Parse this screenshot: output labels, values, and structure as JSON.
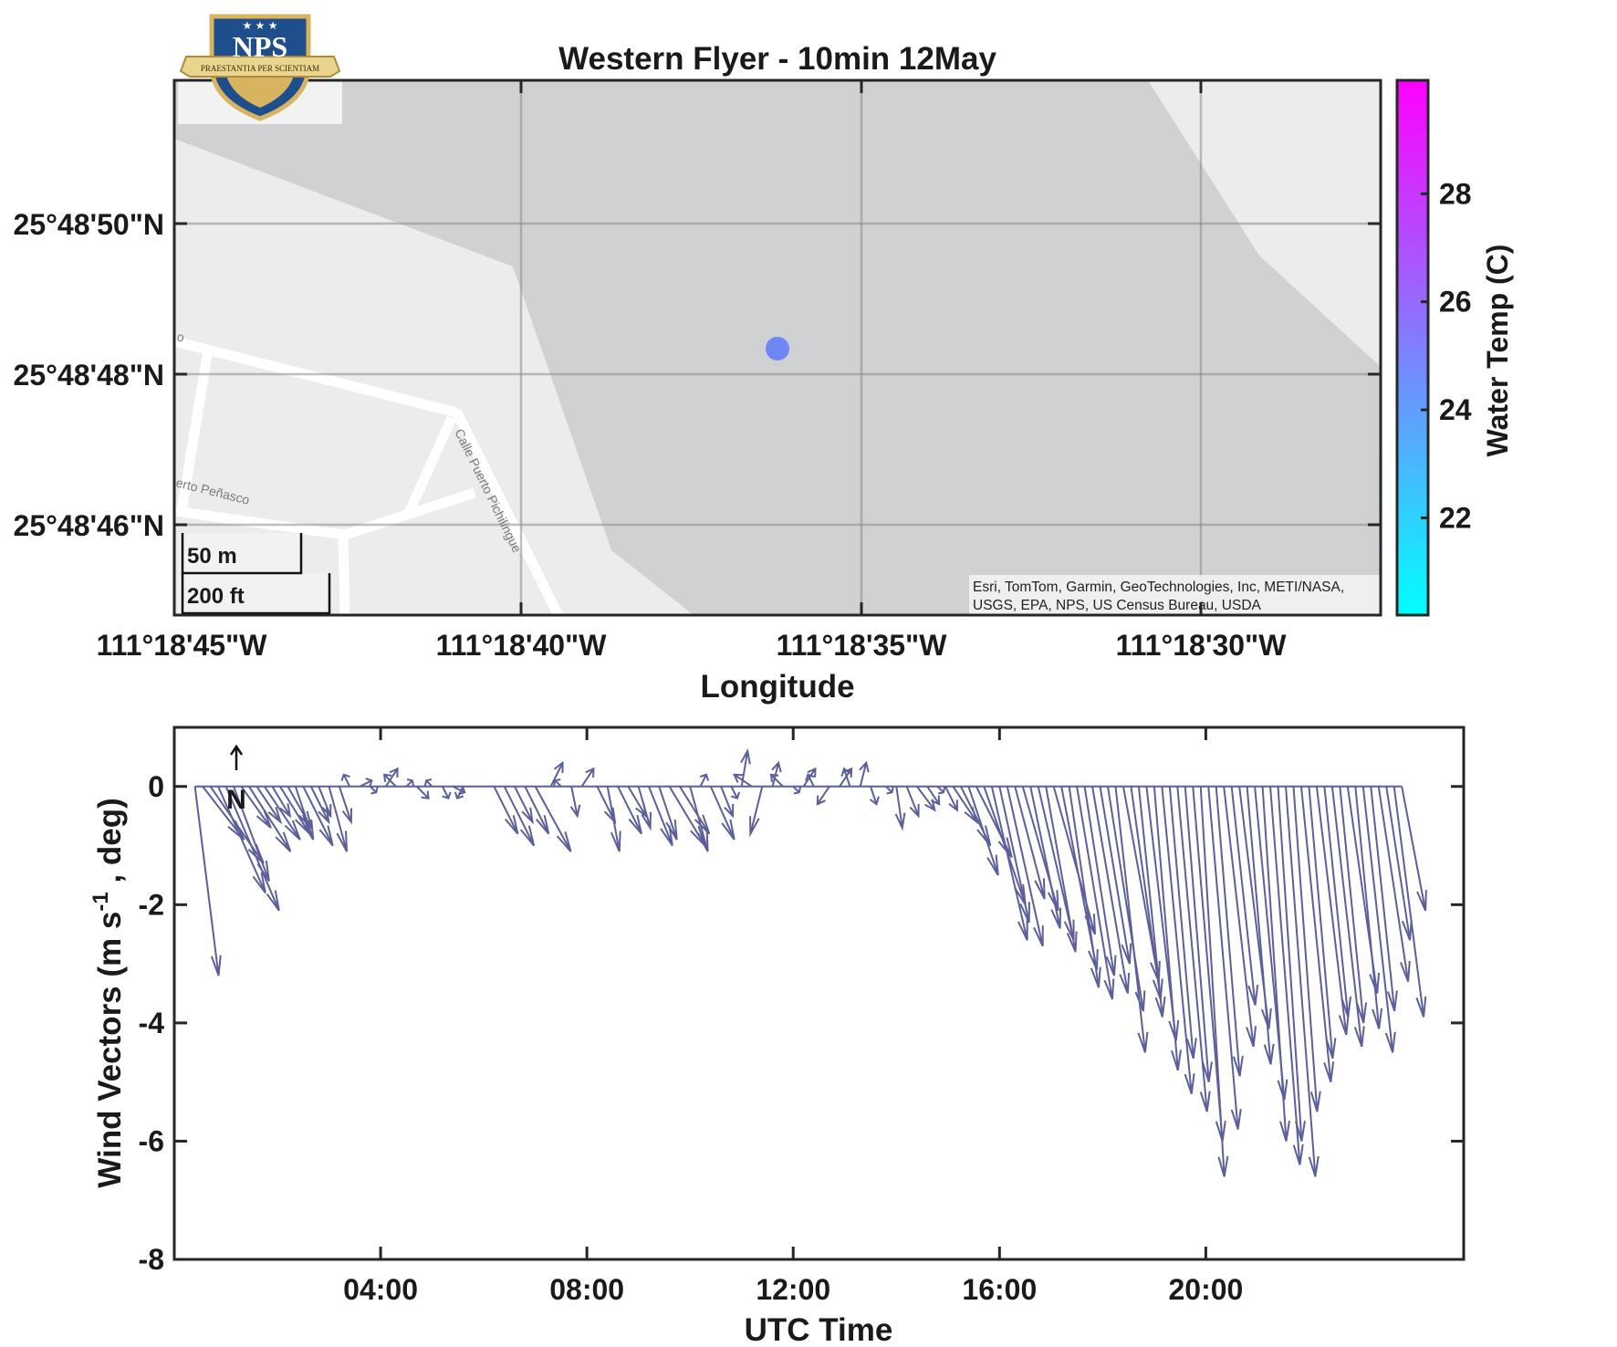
{
  "logo": {
    "text": "NPS",
    "motto": "PRAESTANTIA PER SCIENTIAM",
    "colors": {
      "shield": "#1f4e8c",
      "gold": "#d7b460"
    }
  },
  "map": {
    "title": "Western Flyer - 10min 12May",
    "xlabel": "Longitude",
    "x_ticks": [
      "111°18'45\"W",
      "111°18'40\"W",
      "111°18'35\"W",
      "111°18'30\"W"
    ],
    "y_ticks": [
      "25°48'50\"N",
      "25°48'48\"N",
      "25°48'46\"N"
    ],
    "scale_bar": {
      "metric": "50 m",
      "imperial": "200 ft"
    },
    "street_labels": [
      "Calle Puerto Pichilingue",
      "erto Peñasco",
      "o"
    ],
    "attribution_line1": "Esri, TomTom, Garmin, GeoTechnologies, Inc, METI/NASA,",
    "attribution_line2": "USGS, EPA, NPS, US Census Bureau, USDA",
    "colorbar": {
      "label": "Water Temp (C)",
      "ticks": [
        "22",
        "24",
        "26",
        "28"
      ],
      "min": 20.2,
      "max": 30.1,
      "colors": [
        "#00ffff",
        "#ff00ff"
      ]
    },
    "colors": {
      "water": "#cfd1d2",
      "land": "#ececec",
      "road": "#ffffff",
      "marker": "#6f86f7"
    }
  },
  "chart_data": [
    {
      "type": "scatter",
      "title": "Western Flyer - 10min 12May",
      "xlabel": "Longitude",
      "ylabel": "",
      "x_ticks": [
        "111°18'45\"W",
        "111°18'40\"W",
        "111°18'35\"W",
        "111°18'30\"W"
      ],
      "y_ticks": [
        "25°48'50\"N",
        "25°48'48\"N",
        "25°48'46\"N"
      ],
      "points": [
        {
          "lon": -111.30982,
          "lat": 25.81338,
          "water_temp_c": 25.3
        }
      ],
      "grid": true
    },
    {
      "type": "line",
      "subtype": "wind vector stick plot",
      "xlabel": "UTC Time",
      "ylabel": "Wind Vectors (m s^-1 , deg)",
      "x_ticks": [
        "04:00",
        "08:00",
        "12:00",
        "16:00",
        "20:00"
      ],
      "y_ticks": [
        "0",
        "-2",
        "-4",
        "-6",
        "-8"
      ],
      "xlim_hours": [
        0,
        25
      ],
      "ylim": [
        -8,
        1
      ],
      "north_label": "N",
      "color": "#5d5f9a",
      "grid": false,
      "vectors": [
        {
          "t": 0.4,
          "u": 0.4,
          "v": -3.2
        },
        {
          "t": 0.55,
          "u": 0.7,
          "v": -0.9
        },
        {
          "t": 0.7,
          "u": 0.9,
          "v": -1.3
        },
        {
          "t": 0.85,
          "u": 0.8,
          "v": -1.8
        },
        {
          "t": 1.0,
          "u": 0.9,
          "v": -2.1
        },
        {
          "t": 1.15,
          "u": 0.6,
          "v": -1.6
        },
        {
          "t": 1.3,
          "u": 0.5,
          "v": -0.7
        },
        {
          "t": 1.45,
          "u": 0.7,
          "v": -1.1
        },
        {
          "t": 1.6,
          "u": 0.4,
          "v": -0.6
        },
        {
          "t": 1.75,
          "u": 0.6,
          "v": -0.9
        },
        {
          "t": 1.9,
          "u": 0.3,
          "v": -0.5
        },
        {
          "t": 2.05,
          "u": 0.5,
          "v": -0.8
        },
        {
          "t": 2.2,
          "u": 0.4,
          "v": -0.7
        },
        {
          "t": 2.35,
          "u": 0.3,
          "v": -0.9
        },
        {
          "t": 2.5,
          "u": 0.5,
          "v": -1.0
        },
        {
          "t": 2.65,
          "u": 0.3,
          "v": -0.6
        },
        {
          "t": 2.8,
          "u": 0.2,
          "v": -0.5
        },
        {
          "t": 3.0,
          "u": 0.3,
          "v": -1.1
        },
        {
          "t": 3.2,
          "u": 0.2,
          "v": -0.6
        },
        {
          "t": 3.4,
          "u": -0.1,
          "v": 0.2
        },
        {
          "t": 3.6,
          "u": 0.2,
          "v": 0.1
        },
        {
          "t": 3.8,
          "u": 0.1,
          "v": -0.1
        },
        {
          "t": 4.1,
          "u": 0.2,
          "v": 0.3
        },
        {
          "t": 4.3,
          "u": -0.2,
          "v": 0.2
        },
        {
          "t": 4.5,
          "u": 0.1,
          "v": 0.1
        },
        {
          "t": 4.7,
          "u": 0.2,
          "v": -0.2
        },
        {
          "t": 5.0,
          "u": -0.1,
          "v": 0.1
        },
        {
          "t": 5.2,
          "u": 0.1,
          "v": -0.2
        },
        {
          "t": 5.4,
          "u": 0.2,
          "v": -0.1
        },
        {
          "t": 5.6,
          "u": -0.1,
          "v": -0.2
        },
        {
          "t": 6.2,
          "u": 0.4,
          "v": -0.8
        },
        {
          "t": 6.4,
          "u": 0.5,
          "v": -1.0
        },
        {
          "t": 6.6,
          "u": 0.3,
          "v": -0.6
        },
        {
          "t": 6.8,
          "u": 0.4,
          "v": -0.8
        },
        {
          "t": 7.0,
          "u": 0.6,
          "v": -1.1
        },
        {
          "t": 7.3,
          "u": 0.2,
          "v": 0.4
        },
        {
          "t": 7.5,
          "u": -0.1,
          "v": 0.1
        },
        {
          "t": 7.7,
          "u": 0.1,
          "v": -0.5
        },
        {
          "t": 7.9,
          "u": 0.2,
          "v": 0.3
        },
        {
          "t": 8.2,
          "u": 0.3,
          "v": -0.6
        },
        {
          "t": 8.4,
          "u": 0.2,
          "v": -1.1
        },
        {
          "t": 8.6,
          "u": 0.4,
          "v": -0.8
        },
        {
          "t": 8.8,
          "u": 0.3,
          "v": -0.5
        },
        {
          "t": 9.0,
          "u": 0.2,
          "v": -0.7
        },
        {
          "t": 9.2,
          "u": 0.4,
          "v": -1.0
        },
        {
          "t": 9.4,
          "u": 0.3,
          "v": -0.9
        },
        {
          "t": 9.6,
          "u": 0.6,
          "v": -1.0
        },
        {
          "t": 9.8,
          "u": 0.5,
          "v": -0.8
        },
        {
          "t": 10.0,
          "u": 0.3,
          "v": -1.1
        },
        {
          "t": 10.2,
          "u": 0.1,
          "v": 0.2
        },
        {
          "t": 10.4,
          "u": 0.4,
          "v": -0.9
        },
        {
          "t": 10.6,
          "u": 0.2,
          "v": -0.5
        },
        {
          "t": 10.8,
          "u": 0.1,
          "v": -0.2
        },
        {
          "t": 11.0,
          "u": 0.1,
          "v": 0.6
        },
        {
          "t": 11.2,
          "u": -0.3,
          "v": 0.2
        },
        {
          "t": 11.4,
          "u": -0.2,
          "v": -0.8
        },
        {
          "t": 11.6,
          "u": 0.1,
          "v": 0.4
        },
        {
          "t": 11.8,
          "u": -0.2,
          "v": 0.2
        },
        {
          "t": 12.0,
          "u": 0.1,
          "v": -0.1
        },
        {
          "t": 12.2,
          "u": 0.2,
          "v": 0.3
        },
        {
          "t": 12.4,
          "u": -0.1,
          "v": 0.2
        },
        {
          "t": 12.7,
          "u": -0.2,
          "v": -0.3
        },
        {
          "t": 12.9,
          "u": 0.2,
          "v": 0.3
        },
        {
          "t": 13.1,
          "u": -0.1,
          "v": 0.3
        },
        {
          "t": 13.3,
          "u": 0.1,
          "v": 0.4
        },
        {
          "t": 13.5,
          "u": 0.1,
          "v": -0.3
        },
        {
          "t": 13.8,
          "u": 0.1,
          "v": -0.1
        },
        {
          "t": 14.0,
          "u": 0.1,
          "v": -0.7
        },
        {
          "t": 14.2,
          "u": 0.2,
          "v": -0.5
        },
        {
          "t": 14.4,
          "u": 0.3,
          "v": -0.4
        },
        {
          "t": 14.6,
          "u": 0.2,
          "v": -0.3
        },
        {
          "t": 14.8,
          "u": 0.1,
          "v": -0.1
        },
        {
          "t": 14.95,
          "u": 0.2,
          "v": -0.4
        },
        {
          "t": 15.1,
          "u": 0.4,
          "v": -0.6
        },
        {
          "t": 15.25,
          "u": 0.5,
          "v": -1.0
        },
        {
          "t": 15.4,
          "u": 0.5,
          "v": -1.5
        },
        {
          "t": 15.55,
          "u": 0.6,
          "v": -1.2
        },
        {
          "t": 15.7,
          "u": 0.7,
          "v": -2.0
        },
        {
          "t": 15.85,
          "u": 0.6,
          "v": -2.6
        },
        {
          "t": 16.0,
          "u": 0.5,
          "v": -2.3
        },
        {
          "t": 16.15,
          "u": 0.6,
          "v": -2.7
        },
        {
          "t": 16.3,
          "u": 0.5,
          "v": -1.9
        },
        {
          "t": 16.45,
          "u": 0.6,
          "v": -2.1
        },
        {
          "t": 16.6,
          "u": 0.5,
          "v": -2.4
        },
        {
          "t": 16.75,
          "u": 0.6,
          "v": -2.6
        },
        {
          "t": 16.9,
          "u": 0.5,
          "v": -2.8
        },
        {
          "t": 17.05,
          "u": 0.7,
          "v": -2.5
        },
        {
          "t": 17.2,
          "u": 0.6,
          "v": -3.1
        },
        {
          "t": 17.35,
          "u": 0.5,
          "v": -3.4
        },
        {
          "t": 17.5,
          "u": 0.6,
          "v": -3.6
        },
        {
          "t": 17.65,
          "u": 0.5,
          "v": -3.2
        },
        {
          "t": 17.8,
          "u": 0.6,
          "v": -3.5
        },
        {
          "t": 17.95,
          "u": 0.5,
          "v": -3.0
        },
        {
          "t": 18.1,
          "u": 0.6,
          "v": -3.8
        },
        {
          "t": 18.25,
          "u": 0.5,
          "v": -4.5
        },
        {
          "t": 18.4,
          "u": 0.6,
          "v": -3.3
        },
        {
          "t": 18.55,
          "u": 0.5,
          "v": -3.6
        },
        {
          "t": 18.7,
          "u": 0.4,
          "v": -3.9
        },
        {
          "t": 18.85,
          "u": 0.5,
          "v": -4.3
        },
        {
          "t": 19.0,
          "u": 0.4,
          "v": -4.8
        },
        {
          "t": 19.15,
          "u": 0.5,
          "v": -5.2
        },
        {
          "t": 19.3,
          "u": 0.4,
          "v": -4.6
        },
        {
          "t": 19.45,
          "u": 0.5,
          "v": -5.5
        },
        {
          "t": 19.6,
          "u": 0.4,
          "v": -5.0
        },
        {
          "t": 19.75,
          "u": 0.5,
          "v": -6.0
        },
        {
          "t": 19.9,
          "u": 0.4,
          "v": -6.6
        },
        {
          "t": 20.05,
          "u": 0.5,
          "v": -5.8
        },
        {
          "t": 20.2,
          "u": 0.4,
          "v": -4.9
        },
        {
          "t": 20.35,
          "u": 0.5,
          "v": -4.4
        },
        {
          "t": 20.5,
          "u": 0.4,
          "v": -3.7
        },
        {
          "t": 20.65,
          "u": 0.5,
          "v": -4.1
        },
        {
          "t": 20.8,
          "u": 0.4,
          "v": -4.7
        },
        {
          "t": 20.95,
          "u": 0.5,
          "v": -5.3
        },
        {
          "t": 21.1,
          "u": 0.4,
          "v": -6.0
        },
        {
          "t": 21.25,
          "u": 0.5,
          "v": -6.4
        },
        {
          "t": 21.4,
          "u": 0.4,
          "v": -6.0
        },
        {
          "t": 21.55,
          "u": 0.5,
          "v": -6.6
        },
        {
          "t": 21.7,
          "u": 0.4,
          "v": -5.5
        },
        {
          "t": 21.85,
          "u": 0.5,
          "v": -5.0
        },
        {
          "t": 22.0,
          "u": 0.4,
          "v": -4.6
        },
        {
          "t": 22.15,
          "u": 0.5,
          "v": -4.2
        },
        {
          "t": 22.3,
          "u": 0.4,
          "v": -3.9
        },
        {
          "t": 22.45,
          "u": 0.5,
          "v": -4.4
        },
        {
          "t": 22.6,
          "u": 0.4,
          "v": -4.0
        },
        {
          "t": 22.75,
          "u": 0.5,
          "v": -3.5
        },
        {
          "t": 22.9,
          "u": 0.4,
          "v": -4.1
        },
        {
          "t": 23.05,
          "u": 0.5,
          "v": -4.5
        },
        {
          "t": 23.2,
          "u": 0.4,
          "v": -3.8
        },
        {
          "t": 23.35,
          "u": 0.5,
          "v": -3.3
        },
        {
          "t": 23.5,
          "u": 0.4,
          "v": -2.6
        },
        {
          "t": 23.65,
          "u": 0.5,
          "v": -3.9
        },
        {
          "t": 23.8,
          "u": 0.4,
          "v": -2.1
        }
      ]
    }
  ]
}
